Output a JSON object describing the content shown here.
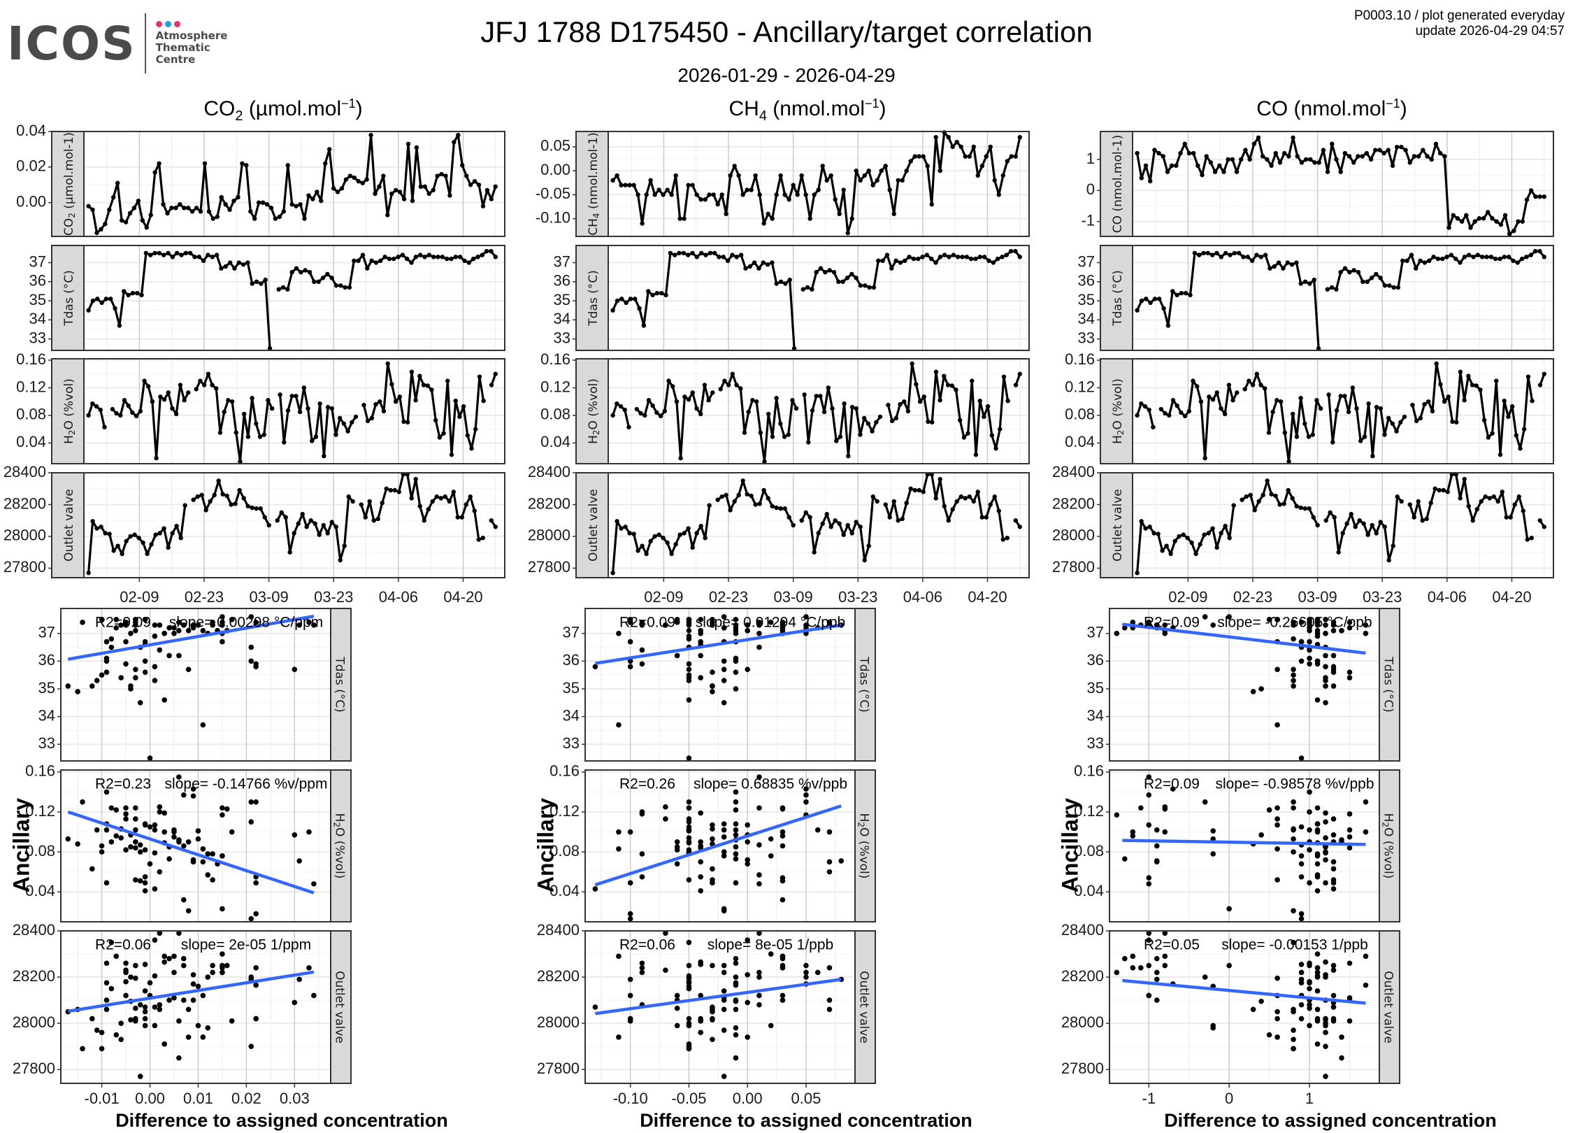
{
  "header": {
    "logo_word": "ICOS",
    "logo_lines": [
      "Atmosphere",
      "Thematic",
      "Centre"
    ],
    "logo_dot_colors": [
      "#e6336f",
      "#1fa0e6",
      "#e6336f"
    ],
    "title": "JFJ 1788 D175450 - Ancillary/target correlation",
    "subtitle": "2026-01-29 - 2026-04-29",
    "meta_line1": "P0003.10 / plot generated everyday",
    "meta_line2": "update  2026-04-29 04:57"
  },
  "columns": [
    {
      "species": "CO",
      "sub": "2",
      "unit": " (µmol.mol",
      "sup": "−1",
      "close": ")"
    },
    {
      "species": "CH",
      "sub": "4",
      "unit": " (nmol.mol",
      "sup": "−1",
      "close": ")"
    },
    {
      "species": "CO",
      "sub": "",
      "unit": " (nmol.mol",
      "sup": "−1",
      "close": ")"
    }
  ],
  "labels": {
    "ancillary_axis": "Ancillary",
    "difference_axis": "Difference to assigned concentration"
  },
  "colors": {
    "fit_line": "#3366ff",
    "strip_bg": "#d9d9d9",
    "grid_major": "#ebebeb",
    "grid_minor": "#f5f5f5",
    "vgrid": "#cccccc"
  },
  "chart_data": [
    {
      "type": "line",
      "title": "Time series (faceted)",
      "x_range": [
        "2026-01-29",
        "2026-04-29"
      ],
      "x_ticks": [
        "02-09",
        "02-23",
        "03-09",
        "03-23",
        "04-06",
        "04-20"
      ],
      "x_tick_days": [
        11,
        25,
        39,
        53,
        67,
        81
      ],
      "x_lim_days": [
        -1,
        90
      ],
      "panels": [
        {
          "row": "target",
          "column": 0,
          "strip": "CO2 (µmol.mol-1)",
          "ylim": [
            -0.019,
            0.04
          ],
          "yticks": [
            0.0,
            0.02,
            0.04
          ],
          "ytick_labels": [
            "0.00",
            "0.02",
            "0.04"
          ],
          "values": [
            -0.002,
            -0.004,
            -0.017,
            -0.015,
            -0.012,
            -0.004,
            0.003,
            0.011,
            -0.01,
            -0.011,
            -0.006,
            -0.003,
            0.001,
            -0.01,
            -0.014,
            -0.007,
            0.017,
            0.022,
            -0.001,
            -0.006,
            -0.003,
            -0.003,
            -0.001,
            -0.003,
            -0.003,
            -0.005,
            -0.003,
            -0.005,
            0.022,
            -0.005,
            -0.009,
            -0.008,
            0.003,
            -0.001,
            -0.004,
            0.001,
            0.003,
            0.022,
            0.021,
            -0.005,
            -0.009,
            0.0,
            0.0,
            -0.001,
            -0.003,
            -0.009,
            -0.008,
            -0.005,
            0.021,
            -0.001,
            -0.002,
            -0.001,
            -0.009,
            0.004,
            0.002,
            0.006,
            0.001,
            0.022,
            0.03,
            0.008,
            0.006,
            0.008,
            0.013,
            0.015,
            0.014,
            0.012,
            0.011,
            0.013,
            0.038,
            0.005,
            0.009,
            0.015,
            -0.007,
            0.005,
            0.007,
            0.006,
            0.002,
            0.033,
            0.001,
            0.031,
            0.009,
            0.009,
            0.005,
            0.007,
            0.015,
            0.016,
            0.015,
            0.004,
            0.034,
            0.038,
            0.021,
            0.015,
            0.01,
            0.012,
            0.01,
            -0.002,
            0.007,
            0.002,
            0.009
          ]
        },
        {
          "row": "target",
          "column": 1,
          "strip": "CH4 (nmol.mol-1)",
          "ylim": [
            -0.137,
            0.082
          ],
          "yticks": [
            -0.1,
            -0.05,
            0.0,
            0.05
          ],
          "ytick_labels": [
            "-0.10",
            "-0.05",
            "0.00",
            "0.05"
          ],
          "values": [
            -0.02,
            -0.01,
            -0.03,
            -0.03,
            -0.03,
            -0.03,
            -0.05,
            -0.11,
            -0.05,
            -0.02,
            -0.05,
            -0.04,
            -0.05,
            -0.04,
            -0.05,
            -0.01,
            -0.1,
            -0.1,
            -0.03,
            -0.03,
            -0.05,
            -0.06,
            -0.06,
            -0.05,
            -0.05,
            -0.07,
            -0.05,
            -0.09,
            -0.01,
            0.01,
            -0.01,
            -0.05,
            -0.04,
            -0.04,
            -0.01,
            -0.05,
            -0.11,
            -0.09,
            -0.1,
            -0.05,
            -0.01,
            -0.05,
            -0.06,
            -0.03,
            -0.05,
            -0.01,
            -0.05,
            -0.1,
            -0.05,
            -0.04,
            0.01,
            -0.02,
            -0.01,
            -0.06,
            -0.09,
            -0.04,
            -0.13,
            -0.1,
            0.0,
            -0.02,
            -0.01,
            0.0,
            -0.03,
            -0.02,
            0.0,
            0.01,
            -0.04,
            -0.09,
            -0.02,
            -0.02,
            0.0,
            0.02,
            0.03,
            0.03,
            0.03,
            0.01,
            -0.07,
            0.07,
            0.0,
            0.08,
            0.07,
            0.05,
            0.06,
            0.05,
            0.03,
            0.03,
            0.05,
            -0.01,
            0.01,
            0.03,
            0.05,
            -0.02,
            -0.05,
            -0.01,
            0.02,
            0.03,
            0.03,
            0.07
          ]
        },
        {
          "row": "target",
          "column": 2,
          "strip": "CO (nmol.mol-1)",
          "ylim": [
            -1.48,
            1.9
          ],
          "yticks": [
            -1,
            0,
            1
          ],
          "ytick_labels": [
            "-1",
            "0",
            "1"
          ],
          "values": [
            1.2,
            0.4,
            0.8,
            0.3,
            1.3,
            1.2,
            1.1,
            0.6,
            0.8,
            0.8,
            1.2,
            1.5,
            1.2,
            1.2,
            0.8,
            0.5,
            1.1,
            0.9,
            0.6,
            0.8,
            0.6,
            1.0,
            1.0,
            0.6,
            1.0,
            1.3,
            1.0,
            1.5,
            1.7,
            1.1,
            1.0,
            0.8,
            1.2,
            0.9,
            1.2,
            1.1,
            1.7,
            1.1,
            0.9,
            1.0,
            1.0,
            0.9,
            0.9,
            1.3,
            0.6,
            1.5,
            1.0,
            0.6,
            1.2,
            1.1,
            0.9,
            1.1,
            1.1,
            1.2,
            1.0,
            1.3,
            1.3,
            1.2,
            1.3,
            0.8,
            1.4,
            1.4,
            1.3,
            0.9,
            1.1,
            1.1,
            1.3,
            1.1,
            1.0,
            1.5,
            1.2,
            1.1,
            -1.2,
            -0.8,
            -0.9,
            -1.0,
            -0.8,
            -1.2,
            -1.0,
            -0.9,
            -0.9,
            -0.7,
            -0.9,
            -1.0,
            -1.1,
            -0.8,
            -1.4,
            -1.3,
            -1.0,
            -1.0,
            -0.3,
            0.0,
            -0.2,
            -0.2,
            -0.2
          ]
        },
        {
          "row": "Tdas",
          "strip": "Tdas (°C)",
          "ylim": [
            32.4,
            37.9
          ],
          "yticks": [
            33,
            34,
            35,
            36,
            37
          ],
          "ytick_labels": [
            "33",
            "34",
            "35",
            "36",
            "37"
          ],
          "values": [
            34.5,
            35.0,
            35.1,
            34.9,
            35.1,
            35.1,
            34.6,
            33.7,
            35.5,
            35.3,
            35.4,
            35.4,
            35.3,
            37.5,
            37.4,
            37.5,
            37.5,
            37.4,
            37.5,
            37.3,
            37.5,
            37.4,
            37.5,
            37.5,
            37.3,
            37.3,
            37.1,
            37.4,
            37.3,
            37.4,
            36.7,
            36.8,
            37.0,
            36.7,
            37.0,
            36.9,
            37.0,
            35.9,
            36.0,
            35.9,
            36.1,
            32.5,
            null,
            35.6,
            35.7,
            35.6,
            36.5,
            36.7,
            36.5,
            36.6,
            36.5,
            36.0,
            36.0,
            36.2,
            36.4,
            36.2,
            35.8,
            35.8,
            35.7,
            35.7,
            37.1,
            37.1,
            37.4,
            36.7,
            37.1,
            37.0,
            37.1,
            37.3,
            37.2,
            37.2,
            37.3,
            37.4,
            37.2,
            37.0,
            37.3,
            37.4,
            37.3,
            37.4,
            37.3,
            37.3,
            37.3,
            37.2,
            37.2,
            37.3,
            37.3,
            37.1,
            37.0,
            37.2,
            37.3,
            37.4,
            37.6,
            37.6,
            37.3
          ]
        },
        {
          "row": "H2O",
          "strip": "H2O (%vol)",
          "ylim": [
            0.01,
            0.162
          ],
          "yticks": [
            0.04,
            0.08,
            0.12,
            0.16
          ],
          "ytick_labels": [
            "0.04",
            "0.08",
            "0.12",
            "0.16"
          ],
          "values": [
            0.08,
            0.097,
            0.093,
            0.088,
            0.063,
            null,
            0.089,
            0.083,
            0.08,
            0.102,
            0.094,
            0.084,
            0.079,
            0.086,
            0.13,
            0.122,
            0.1,
            0.018,
            0.107,
            0.103,
            0.113,
            0.09,
            0.082,
            0.124,
            0.102,
            0.113,
            null,
            0.118,
            0.13,
            0.124,
            0.14,
            0.124,
            0.119,
            0.055,
            0.085,
            0.102,
            0.1,
            0.055,
            0.013,
            0.082,
            0.049,
            0.105,
            0.068,
            0.049,
            0.052,
            0.102,
            0.09,
            null,
            0.11,
            0.041,
            0.087,
            0.108,
            0.108,
            0.085,
            0.12,
            0.09,
            0.043,
            0.049,
            0.097,
            0.021,
            0.092,
            0.09,
            0.052,
            0.076,
            0.068,
            0.057,
            0.07,
            0.078,
            null,
            0.095,
            0.072,
            0.076,
            0.096,
            0.1,
            0.086,
            0.155,
            0.125,
            0.1,
            0.107,
            0.071,
            0.07,
            0.143,
            0.102,
            0.137,
            0.124,
            0.123,
            0.117,
            0.073,
            0.048,
            0.054,
            0.13,
            0.023,
            0.101,
            0.078,
            0.093,
            0.051,
            0.032,
            0.06,
            0.136,
            0.101,
            null,
            0.124,
            0.14
          ]
        },
        {
          "row": "Outlet valve",
          "strip": "Outlet valve",
          "ylim": [
            27740,
            28400
          ],
          "yticks": [
            27800,
            28000,
            28200,
            28400
          ],
          "ytick_labels": [
            "27800",
            "28000",
            "28200",
            "28400"
          ],
          "values": [
            27770,
            28095,
            28050,
            28060,
            28020,
            28015,
            27910,
            27940,
            27890,
            27970,
            28000,
            28010,
            27990,
            27960,
            27890,
            27950,
            28010,
            28020,
            28050,
            27930,
            28020,
            28065,
            27990,
            28195,
            null,
            28230,
            28250,
            28260,
            28165,
            28220,
            28260,
            28350,
            28265,
            28255,
            28200,
            28205,
            28290,
            28240,
            28190,
            28180,
            28175,
            28175,
            28120,
            28070,
            null,
            28100,
            28150,
            28120,
            27900,
            28020,
            28080,
            28140,
            28060,
            28100,
            28080,
            28010,
            28070,
            28020,
            28090,
            28060,
            27850,
            27940,
            28250,
            28220,
            null,
            28200,
            28120,
            28220,
            28100,
            28110,
            28210,
            28300,
            28290,
            28290,
            28280,
            28390,
            28390,
            28240,
            28360,
            28190,
            28100,
            28170,
            28220,
            28250,
            28240,
            28250,
            28220,
            28280,
            28120,
            28120,
            28200,
            28250,
            28160,
            27980,
            27990,
            null,
            28100,
            28060
          ]
        }
      ]
    },
    {
      "type": "scatter",
      "title": "Ancillary vs difference to assigned concentration",
      "xlabel": "Difference to assigned concentration",
      "ylabel": "Ancillary",
      "columns": [
        {
          "species": "CO2",
          "xlim": [
            -0.0185,
            0.0375
          ],
          "xticks": [
            -0.01,
            0.0,
            0.01,
            0.02,
            0.03
          ],
          "xtick_labels": [
            "-0.01",
            "0.00",
            "0.01",
            "0.02",
            "0.03"
          ],
          "fits": [
            {
              "row": "Tdas",
              "r2_label": "R2=0.09",
              "slope_label": "slope= 0.00298 °C/ppm",
              "line_x": [
                -0.017,
                0.034
              ],
              "line_y": [
                36.07,
                37.62
              ]
            },
            {
              "row": "H2O",
              "r2_label": "R2=0.23",
              "slope_label": "slope= -0.14766 %v/ppm",
              "line_x": [
                -0.017,
                0.034
              ],
              "line_y": [
                0.12,
                0.039
              ]
            },
            {
              "row": "Outlet valve",
              "r2_label": "R2=0.06",
              "slope_label": "slope= 2e-05 1/ppm",
              "line_x": [
                -0.017,
                0.034
              ],
              "line_y": [
                28052,
                28222
              ]
            }
          ]
        },
        {
          "species": "CH4",
          "xlim": [
            -0.1386,
            0.0918
          ],
          "xticks": [
            -0.1,
            -0.05,
            0.0,
            0.05
          ],
          "xtick_labels": [
            "-0.10",
            "-0.05",
            "0.00",
            "0.05"
          ],
          "fits": [
            {
              "row": "Tdas",
              "r2_label": "R2=0.09",
              "slope_label": "slope= 0.01294 °C/ppb",
              "line_x": [
                -0.13,
                0.08
              ],
              "line_y": [
                35.92,
                37.3
              ]
            },
            {
              "row": "H2O",
              "r2_label": "R2=0.26",
              "slope_label": "slope= 0.68835 %v/ppb",
              "line_x": [
                -0.13,
                0.08
              ],
              "line_y": [
                0.047,
                0.126
              ]
            },
            {
              "row": "Outlet valve",
              "r2_label": "R2=0.06",
              "slope_label": "slope= 8e-05 1/ppb",
              "line_x": [
                -0.13,
                0.08
              ],
              "line_y": [
                28042,
                28190
              ]
            }
          ]
        },
        {
          "species": "CO",
          "xlim": [
            -1.49,
            1.87
          ],
          "xticks": [
            -1,
            0,
            1
          ],
          "xtick_labels": [
            "-1",
            "0",
            "1"
          ],
          "fits": [
            {
              "row": "Tdas",
              "r2_label": "R2=0.09",
              "slope_label": "slope= -0.26605 °C/ppb",
              "line_x": [
                -1.33,
                1.7
              ],
              "line_y": [
                37.33,
                36.29
              ]
            },
            {
              "row": "H2O",
              "r2_label": "R2=0.09",
              "slope_label": "slope= -0.98578 %v/ppb",
              "line_x": [
                -1.33,
                1.7
              ],
              "line_y": [
                0.0915,
                0.0875
              ]
            },
            {
              "row": "Outlet valve",
              "r2_label": "R2=0.05",
              "slope_label": "slope= -0.00153 1/ppb",
              "line_x": [
                -1.33,
                1.7
              ],
              "line_y": [
                28185,
                28087
              ]
            }
          ]
        }
      ]
    }
  ]
}
